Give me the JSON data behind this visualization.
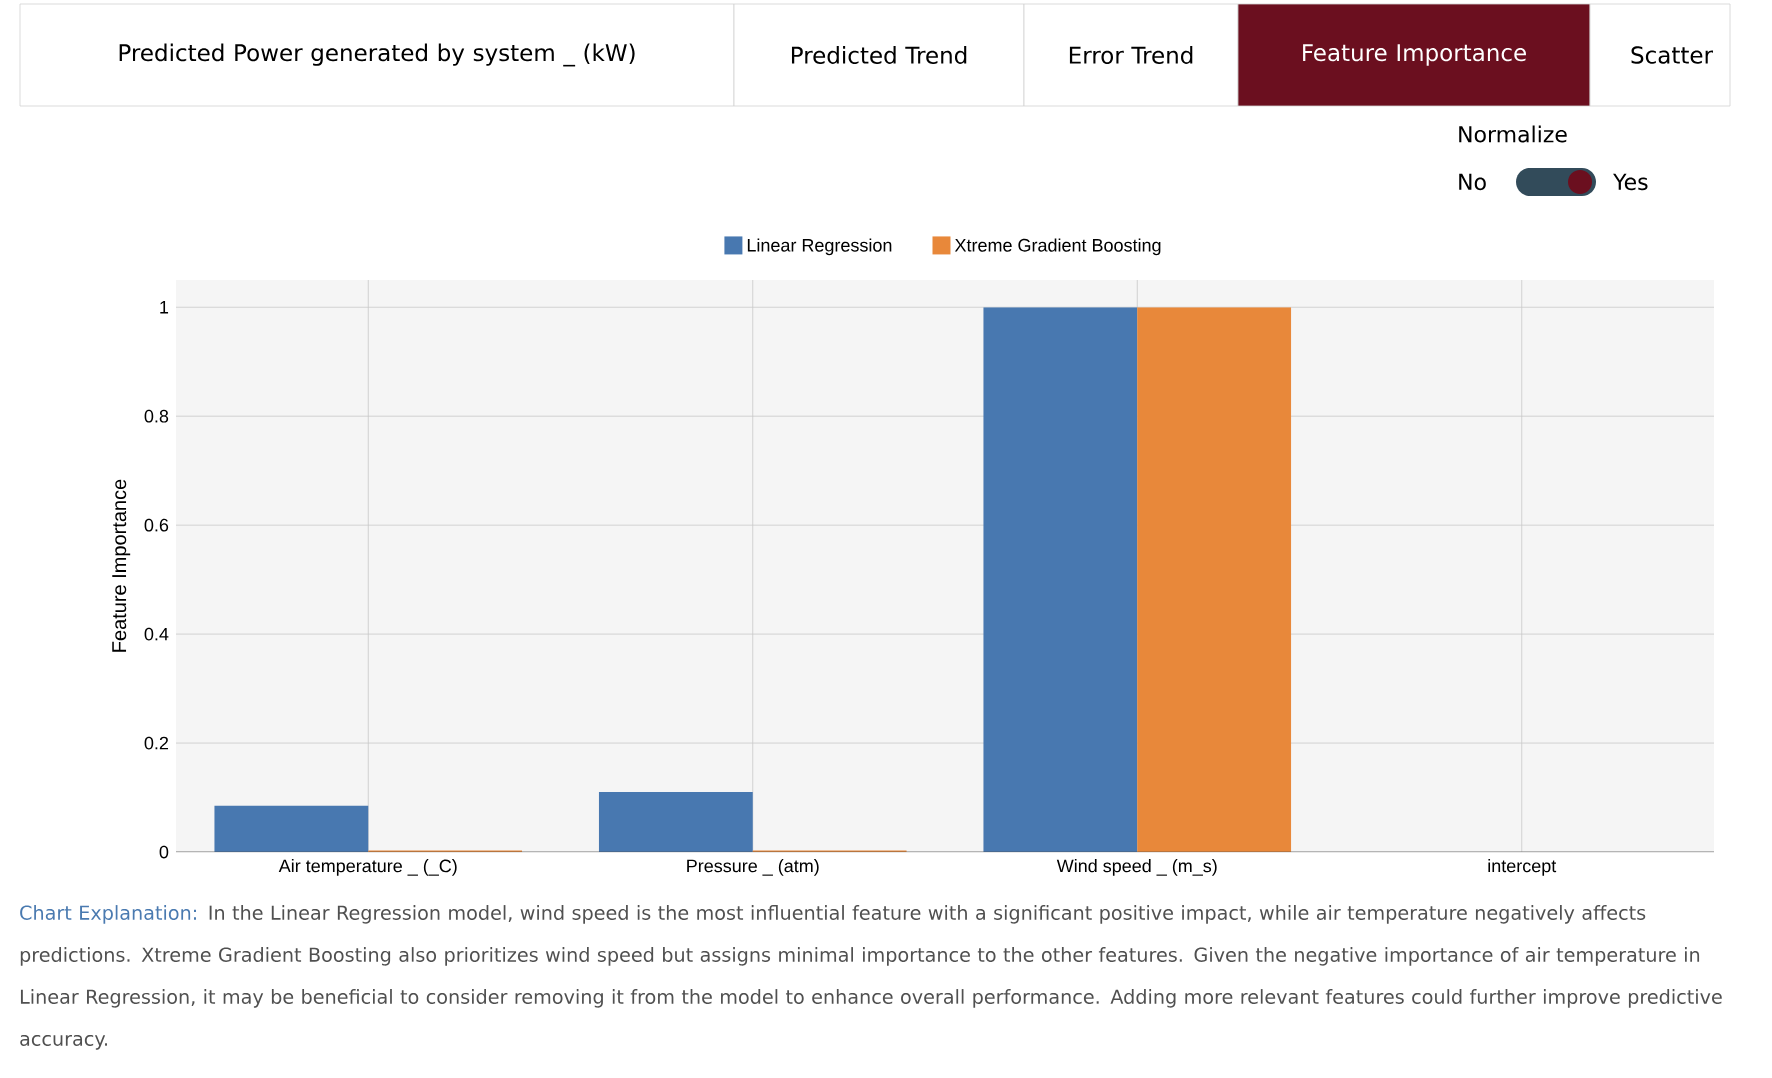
{
  "chart_data": {
    "type": "bar",
    "ylabel": "Feature Importance",
    "categories": [
      "Air temperature _ (_C)",
      "Pressure _ (atm)",
      "Wind speed _ (m_s)",
      "intercept"
    ],
    "series": [
      {
        "name": "Linear Regression",
        "color": "#4878b0",
        "values": [
          0.085,
          0.11,
          1,
          0
        ]
      },
      {
        "name": "Xtreme Gradient Boosting",
        "color": "#e8883a",
        "values": [
          0.003,
          0.003,
          1,
          0
        ]
      }
    ],
    "ylim": [
      0,
      1.05
    ],
    "yticks": [
      0,
      0.2,
      0.4,
      0.6,
      0.8,
      1
    ],
    "grid": true,
    "legend": "top",
    "annotations": [
      "Predicted Power generated by system _ (kW)",
      "Predicted Trend",
      "Error Trend",
      "Feature Importance",
      "Scatter",
      "Normalize",
      "No",
      "Yes",
      "Chart Explanation:",
      "In the Linear Regression model, wind speed is the most influential feature with a significant positive impact, while air temperature negatively affects predictions. Xtreme Gradient Boosting also prioritizes wind speed but assigns minimal importance to the other features. Given the negative importance of air temperature in Linear Regression, it may be beneficial to consider removing it from the model to enhance overall performance. Adding more relevant features could further improve predictive accuracy."
    ]
  }
}
